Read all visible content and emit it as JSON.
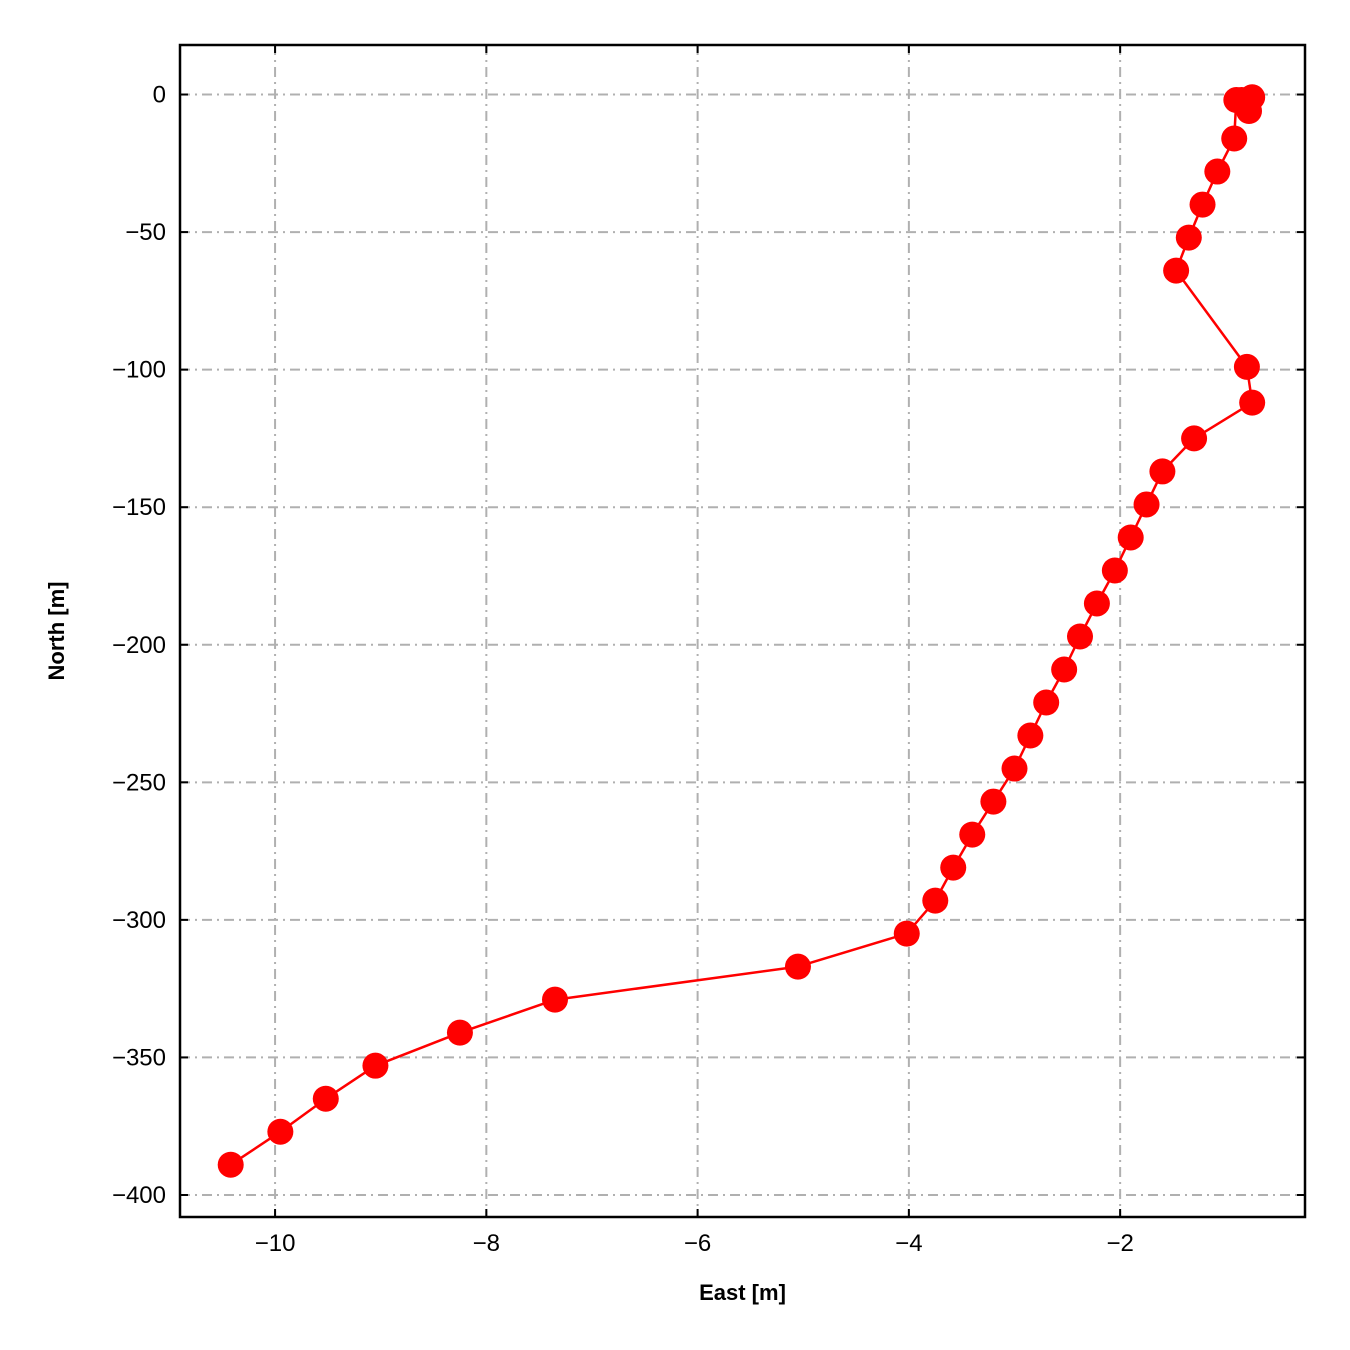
{
  "chart_data": {
    "type": "line",
    "title": "",
    "xlabel": "East [m]",
    "ylabel": "North [m]",
    "xlim": [
      -10.9,
      -0.25
    ],
    "ylim": [
      -408,
      18
    ],
    "xticks": [
      -10,
      -8,
      -6,
      -4,
      -2
    ],
    "xtick_labels": [
      "−10",
      "−8",
      "−6",
      "−4",
      "−2"
    ],
    "yticks": [
      0,
      -50,
      -100,
      -150,
      -200,
      -250,
      -300,
      -350,
      -400
    ],
    "ytick_labels": [
      "0",
      "−50",
      "−100",
      "−150",
      "−200",
      "−250",
      "−300",
      "−350",
      "−400"
    ],
    "grid": true,
    "legend": "none",
    "series": [
      {
        "color": "#ff0000",
        "marker": "circle",
        "x": [
          -0.75,
          -0.8,
          -0.85,
          -0.78,
          -0.9,
          -0.92,
          -1.08,
          -1.22,
          -1.35,
          -1.47,
          -0.8,
          -0.75,
          -1.3,
          -1.6,
          -1.75,
          -1.9,
          -2.05,
          -2.22,
          -2.38,
          -2.53,
          -2.7,
          -2.85,
          -3.0,
          -3.2,
          -3.4,
          -3.58,
          -3.75,
          -4.02,
          -5.05,
          -7.35,
          -8.25,
          -9.05,
          -9.52,
          -9.95,
          -10.42
        ],
        "y": [
          -1,
          -2,
          -2,
          -6,
          -2,
          -16,
          -28,
          -40,
          -52,
          -64,
          -99,
          -112,
          -125,
          -137,
          -149,
          -161,
          -173,
          -185,
          -197,
          -209,
          -221,
          -233,
          -245,
          -257,
          -269,
          -281,
          -293,
          -305,
          -317,
          -329,
          -341,
          -353,
          -365,
          -377,
          -389
        ]
      }
    ]
  }
}
